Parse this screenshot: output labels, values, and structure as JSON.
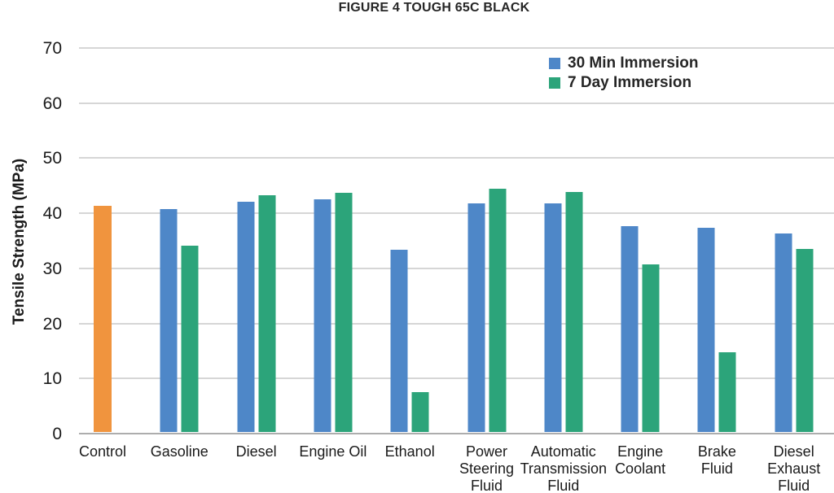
{
  "title": "FIGURE 4 TOUGH 65C BLACK",
  "y_axis": {
    "label": "Tensile Strength (MPa)",
    "ticks": [
      0,
      10,
      20,
      30,
      40,
      50,
      60,
      70
    ]
  },
  "legend": {
    "items": [
      {
        "label": "30 Min Immersion",
        "color": "#4E87C8"
      },
      {
        "label": "7 Day Immersion",
        "color": "#2CA47A"
      }
    ]
  },
  "chart_data": {
    "type": "bar",
    "title": "FIGURE 4 TOUGH 65C BLACK",
    "xlabel": "",
    "ylabel": "Tensile Strength (MPa)",
    "ylim": [
      0,
      70
    ],
    "yticks": [
      0,
      10,
      20,
      30,
      40,
      50,
      60,
      70
    ],
    "grid": "horizontal",
    "legend_position": "top-right-inside",
    "categories": [
      "Control",
      "Gasoline",
      "Diesel",
      "Engine Oil",
      "Ethanol",
      "Power Steering Fluid",
      "Automatic Transmission Fluid",
      "Engine Coolant",
      "Brake Fluid",
      "Diesel Exhaust Fluid"
    ],
    "category_lines": [
      [
        "Control"
      ],
      [
        "Gasoline"
      ],
      [
        "Diesel"
      ],
      [
        "Engine Oil"
      ],
      [
        "Ethanol"
      ],
      [
        "Power",
        "Steering",
        "Fluid"
      ],
      [
        "Automatic",
        "Transmission",
        "Fluid"
      ],
      [
        "Engine",
        "Coolant"
      ],
      [
        "Brake",
        "Fluid"
      ],
      [
        "Diesel",
        "Exhaust",
        "Fluid"
      ]
    ],
    "series": [
      {
        "name": "Control",
        "color": "#F0943E",
        "values": [
          41.0,
          null,
          null,
          null,
          null,
          null,
          null,
          null,
          null,
          null
        ]
      },
      {
        "name": "30 Min Immersion",
        "color": "#4E87C8",
        "values": [
          null,
          40.5,
          41.8,
          42.3,
          33.1,
          41.5,
          41.5,
          37.3,
          37.1,
          36.0
        ]
      },
      {
        "name": "7 Day Immersion",
        "color": "#2CA47A",
        "values": [
          null,
          33.8,
          43.0,
          43.4,
          7.2,
          44.2,
          43.5,
          30.4,
          14.5,
          33.2
        ]
      }
    ],
    "colors": {
      "control_bar": "#F0943E",
      "series_30min": "#4E87C8",
      "series_7day": "#2CA47A",
      "gridline": "#D6D6D6",
      "baseline": "#ADADAD",
      "text": "#1F1F1F"
    }
  }
}
